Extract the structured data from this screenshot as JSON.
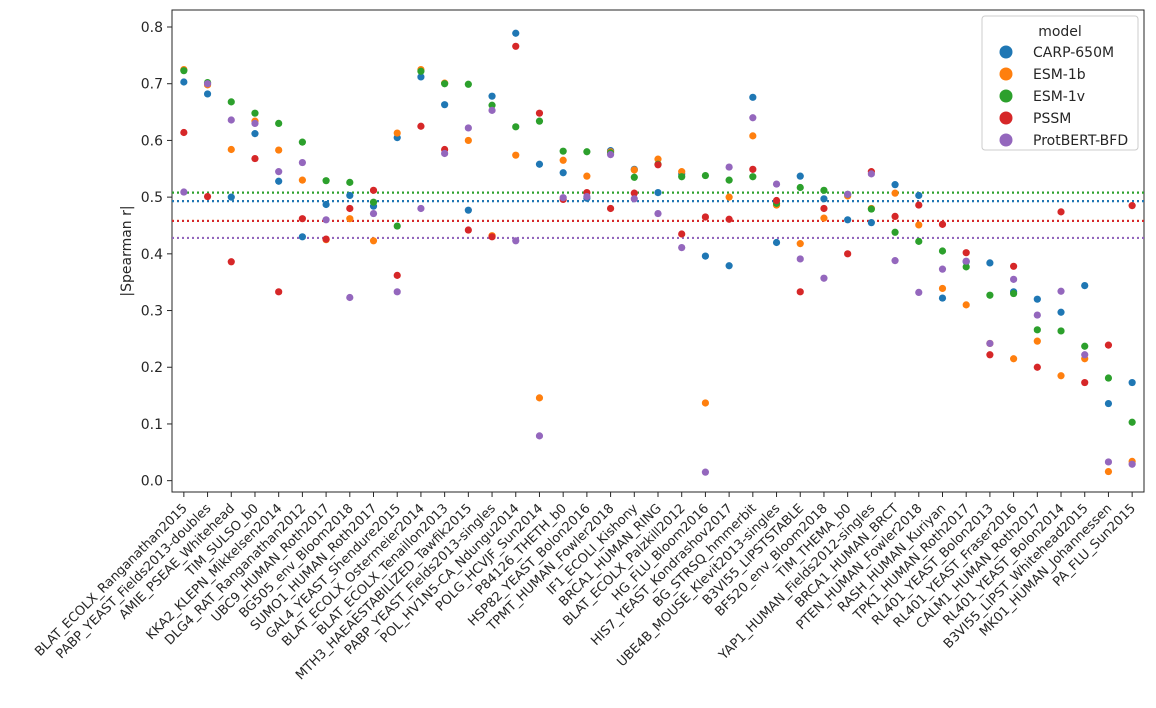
{
  "chart_data": {
    "type": "scatter",
    "title": "",
    "xlabel": "",
    "ylabel": "|Spearman r|",
    "ylim": [
      -0.02,
      0.83
    ],
    "yticks": [
      0.0,
      0.1,
      0.2,
      0.3,
      0.4,
      0.5,
      0.6,
      0.7,
      0.8
    ],
    "ytick_labels": [
      "0.0",
      "0.1",
      "0.2",
      "0.3",
      "0.4",
      "0.5",
      "0.6",
      "0.7",
      "0.8"
    ],
    "grid": false,
    "legend": {
      "title": "model",
      "placement": "top-right"
    },
    "categories": [
      "BLAT_ECOLX_Ranganathan2015",
      "PABP_YEAST_Fields2013-doubles",
      "AMIE_PSEAE_Whitehead",
      "TIM_SULSO_b0",
      "KKA2_KLEPN_Mikkelsen2014",
      "DLG4_RAT_Ranganathan2012",
      "UBC9_HUMAN_Roth2017",
      "BG505_env_Bloom2018",
      "SUMO1_HUMAN_Roth2017",
      "GAL4_YEAST_Shendure2015",
      "BLAT_ECOLX_Ostermeier2014",
      "BLAT_ECOLX_Tenaillon2013",
      "MTH3_HAEAESTABILIZED_Tawfik2015",
      "PABP_YEAST_Fields2013-singles",
      "POL_HV1N5-CA_Ndungu2014",
      "POLG_HCVJF_Sun2014",
      "P84126_THETH_b0",
      "HSP82_YEAST_Bolon2016",
      "TPMT_HUMAN_Fowler2018",
      "IF1_ECOLI_Kishony",
      "BRCA1_HUMAN_RING",
      "BLAT_ECOLX_Palzkill2012",
      "HG_FLU_Bloom2016",
      "HIS7_YEAST_Kondrashov2017",
      "BG_STRSQ_hmmerbit",
      "UBE4B_MOUSE_Klevit2013-singles",
      "B3VI55_LIPSTSTABLE",
      "BF520_env_Bloom2018",
      "TIM_THEMA_b0",
      "YAP1_HUMAN_Fields2012-singles",
      "BRCA1_HUMAN_BRCT",
      "PTEN_HUMAN_Fowler2018",
      "RASH_HUMAN_Kuriyan",
      "TPK1_HUMAN_Roth2017",
      "RL401_YEAST_Bolon2013",
      "RL401_YEAST_Fraser2016",
      "CALM1_HUMAN_Roth2017",
      "RL401_YEAST_Bolon2014",
      "B3VI55_LIPST_Whitehead2015",
      "MK01_HUMAN_Johannessen",
      "PA_FLU_Sun2015"
    ],
    "series": [
      {
        "name": "CARP-650M",
        "color": "#1f77b4",
        "mean": 0.493,
        "values": [
          0.703,
          0.682,
          0.5,
          0.612,
          0.528,
          0.43,
          0.487,
          0.503,
          0.484,
          0.605,
          0.712,
          0.663,
          0.477,
          0.678,
          0.789,
          0.558,
          0.543,
          0.498,
          0.582,
          0.549,
          0.508,
          0.541,
          0.396,
          0.379,
          0.676,
          0.42,
          0.537,
          0.497,
          0.46,
          0.455,
          0.522,
          0.503,
          0.322,
          0.386,
          0.384,
          0.333,
          0.32,
          0.297,
          0.344,
          0.136,
          0.173
        ]
      },
      {
        "name": "ESM-1b",
        "color": "#ff7f0e",
        "mean": 0.458,
        "values": [
          0.725,
          0.698,
          0.584,
          0.634,
          0.583,
          0.53,
          0.425,
          0.462,
          0.423,
          0.613,
          0.725,
          0.701,
          0.6,
          0.432,
          0.574,
          0.146,
          0.565,
          0.537,
          0.58,
          0.548,
          0.567,
          0.545,
          0.137,
          0.5,
          0.608,
          0.486,
          0.418,
          0.463,
          0.502,
          0.48,
          0.507,
          0.451,
          0.339,
          0.31,
          0.242,
          0.215,
          0.246,
          0.185,
          0.215,
          0.016,
          0.034
        ]
      },
      {
        "name": "ESM-1v",
        "color": "#2ca02c",
        "mean": 0.508,
        "values": [
          0.723,
          0.702,
          0.668,
          0.648,
          0.63,
          0.597,
          0.529,
          0.526,
          0.491,
          0.449,
          0.722,
          0.7,
          0.699,
          0.662,
          0.624,
          0.634,
          0.581,
          0.58,
          0.578,
          0.535,
          0.558,
          0.536,
          0.538,
          0.53,
          0.536,
          0.489,
          0.517,
          0.512,
          0.505,
          0.479,
          0.438,
          0.422,
          0.405,
          0.377,
          0.327,
          0.33,
          0.266,
          0.264,
          0.237,
          0.181,
          0.103
        ]
      },
      {
        "name": "PSSM",
        "color": "#d62728",
        "mean": 0.458,
        "values": [
          0.614,
          0.501,
          0.386,
          0.568,
          0.333,
          0.462,
          0.426,
          0.48,
          0.512,
          0.362,
          0.625,
          0.584,
          0.442,
          0.43,
          0.766,
          0.648,
          0.496,
          0.508,
          0.48,
          0.507,
          0.557,
          0.435,
          0.465,
          0.461,
          0.549,
          0.494,
          0.333,
          0.48,
          0.4,
          0.545,
          0.466,
          0.486,
          0.452,
          0.402,
          0.222,
          0.378,
          0.2,
          0.474,
          0.173,
          0.239,
          0.485
        ]
      },
      {
        "name": "ProtBERT-BFD",
        "color": "#9467bd",
        "mean": 0.428,
        "values": [
          0.509,
          0.7,
          0.636,
          0.63,
          0.545,
          0.561,
          0.46,
          0.323,
          0.471,
          0.333,
          0.48,
          0.577,
          0.622,
          0.653,
          0.423,
          0.079,
          0.499,
          0.501,
          0.575,
          0.497,
          0.471,
          0.411,
          0.015,
          0.553,
          0.64,
          0.523,
          0.391,
          0.357,
          0.505,
          0.541,
          0.388,
          0.332,
          0.373,
          0.387,
          0.242,
          0.355,
          0.292,
          0.334,
          0.222,
          0.033,
          0.029
        ]
      }
    ]
  }
}
